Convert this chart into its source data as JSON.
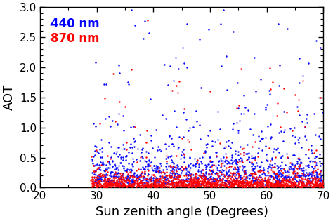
{
  "title": "",
  "xlabel": "Sun zenith angle (Degrees)",
  "ylabel": "AOT",
  "xlim": [
    20,
    70
  ],
  "ylim": [
    0.0,
    3.0
  ],
  "xticks": [
    20,
    30,
    40,
    50,
    60,
    70
  ],
  "yticks": [
    0.0,
    0.5,
    1.0,
    1.5,
    2.0,
    2.5,
    3.0
  ],
  "legend_440": "440 nm",
  "legend_870": "870 nm",
  "color_440": "#0000ff",
  "color_870": "#ff0000",
  "marker_size": 3,
  "seed": 42,
  "n_points_blue": 1200,
  "n_points_red": 1500,
  "x_min": 29.0,
  "x_max": 70.0,
  "background_color": "#ffffff",
  "xlabel_fontsize": 13,
  "ylabel_fontsize": 13,
  "tick_fontsize": 11,
  "legend_fontsize": 12
}
